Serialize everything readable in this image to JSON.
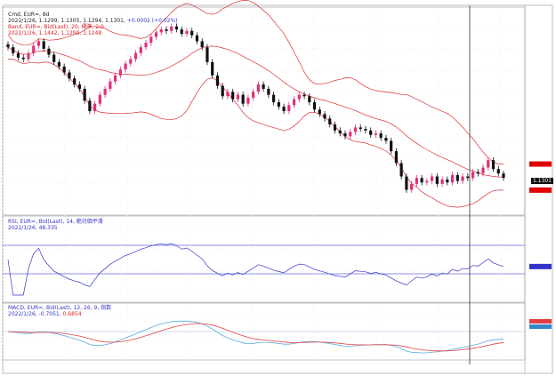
{
  "header": {
    "title": "Cmd, EUR=, 8d",
    "ohlc": "2022/1/26, 1.1299, 1.1305, 1.1294, 1.1301,",
    "change": "+0.0002 (+0.02%)"
  },
  "bollinger": {
    "title": "Band, EUR=, Bid(Last), 20, 標準, 2.0",
    "values": "2022/1/26, 1.1442, 1.1299, 1.1248",
    "color": "#e03030"
  },
  "rsi": {
    "title": "RSI, EUR=, Bid(Last), 14, 絶対価平滑",
    "values": "2022/1/26, 48.335",
    "color": "#3333cc"
  },
  "macd": {
    "title": "MACD, EUR=, Bid(Last), 12, 26, 9, 指数",
    "values": "2022/1/26, -0.7051,",
    "signal": "0.6854",
    "color": "#5aaae0",
    "signal_color": "#e04040"
  },
  "price_tag": "1.1301",
  "colors": {
    "up": "#e0307a",
    "down": "#111111",
    "band": "#e03030",
    "rsi": "#3333cc"
  },
  "chart_data": {
    "type": "candlestick",
    "series": [
      {
        "values": [
          1.218,
          1.214,
          1.211,
          1.21,
          1.214,
          1.219,
          1.222,
          1.217,
          1.213,
          1.208,
          1.205,
          1.201,
          1.197,
          1.193,
          1.19,
          1.182,
          1.175,
          1.18,
          1.186,
          1.19,
          1.195,
          1.199,
          1.203,
          1.207,
          1.21,
          1.214,
          1.218,
          1.221,
          1.225,
          1.228,
          1.23,
          1.229,
          1.232,
          1.23,
          1.227,
          1.229,
          1.226,
          1.222,
          1.218,
          1.208,
          1.199,
          1.192,
          1.185,
          1.188,
          1.183,
          1.186,
          1.18,
          1.184,
          1.188,
          1.193,
          1.19,
          1.186,
          1.181,
          1.178,
          1.175,
          1.179,
          1.183,
          1.186,
          1.185,
          1.181,
          1.176,
          1.173,
          1.17,
          1.166,
          1.162,
          1.16,
          1.158,
          1.161,
          1.164,
          1.163,
          1.162,
          1.159,
          1.16,
          1.157,
          1.155,
          1.148,
          1.14,
          1.131,
          1.122,
          1.126,
          1.13,
          1.127,
          1.128,
          1.131,
          1.126,
          1.129,
          1.127,
          1.132,
          1.128,
          1.131,
          1.13,
          1.134,
          1.133,
          1.137,
          1.142,
          1.136,
          1.133,
          1.1301
        ]
      }
    ],
    "ylim": [
      1.105,
      1.245
    ],
    "grid": true
  }
}
